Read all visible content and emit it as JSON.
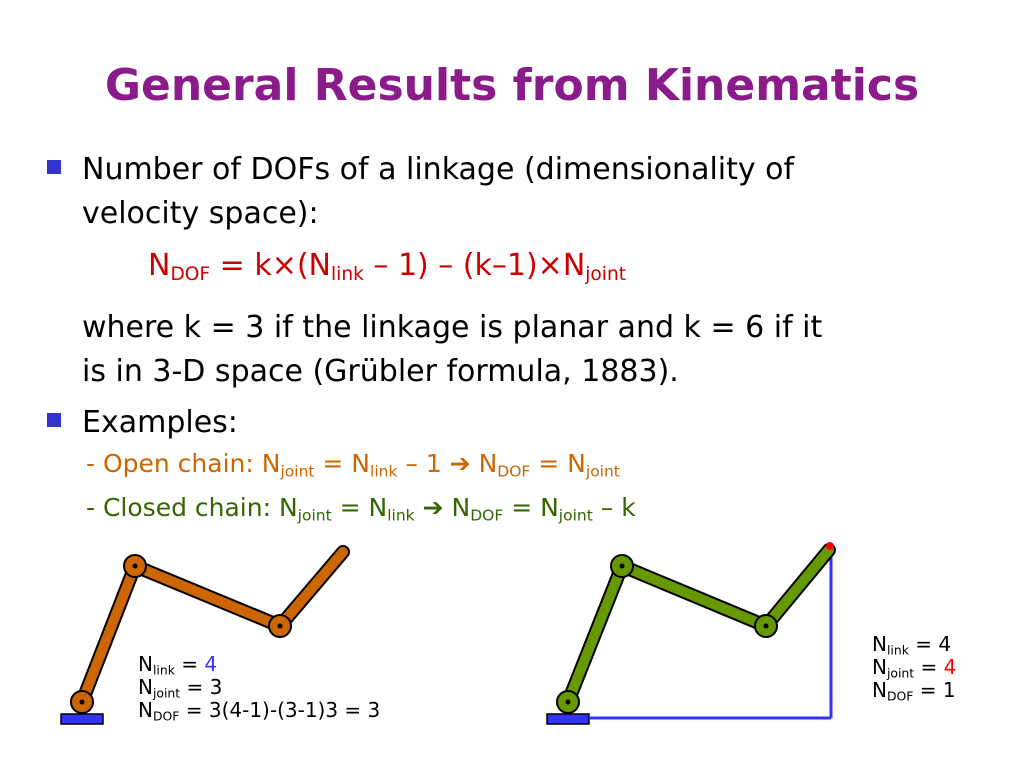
{
  "slide": {
    "title": "General Results from Kinematics",
    "bullet1": {
      "line1": "Number of DOFs of a linkage (dimensionality of",
      "line2": "velocity space):",
      "formula": {
        "n": "N",
        "dof_sub": "DOF",
        "eq_k": " = k×(N",
        "link_sub": "link",
        "minus1": " – 1) – (k–1)×N",
        "joint_sub": "joint"
      },
      "where1": "where k = 3 if the linkage is planar and k = 6 if it",
      "where2": "is in 3-D space (Grübler formula, 1883)."
    },
    "bullet2": {
      "label": "Examples:",
      "open": {
        "prefix": "- Open chain: N",
        "joint_sub": "joint",
        "eq": " = N",
        "link_sub": "link",
        "minus": " – 1 ➔ N",
        "dof_sub": "DOF",
        "eq2": " = N",
        "joint_sub2": "joint"
      },
      "closed": {
        "prefix": "- Closed chain: N",
        "joint_sub": "joint",
        "eq": " = N",
        "link_sub": "link",
        "arrow": " ➔ N",
        "dof_sub": "DOF",
        "eq2": " = N",
        "joint_sub2": "joint",
        "minus_k": " – k"
      }
    }
  },
  "left_example": {
    "nlink": {
      "n": "N",
      "sub": "link",
      "eq": " = ",
      "val": "4"
    },
    "njoint": {
      "n": "N",
      "sub": "joint",
      "eq": " = ",
      "val": "3"
    },
    "ndof": {
      "n": "N",
      "sub": "DOF",
      "eq": " = 3(4-1)-(3-1)3 = 3"
    }
  },
  "right_example": {
    "nlink": {
      "n": "N",
      "sub": "link",
      "eq": " = ",
      "val": "4"
    },
    "njoint": {
      "n": "N",
      "sub": "joint",
      "eq": " = ",
      "val": "4"
    },
    "ndof": {
      "n": "N",
      "sub": "DOF",
      "eq": " = ",
      "val": "1"
    }
  },
  "colors": {
    "title": "#8b1a8b",
    "bullet": "#3333cc",
    "formula": "#cc0000",
    "open_chain": "#cc6600",
    "closed_chain": "#336600",
    "orange_link": "#cc6600",
    "green_link": "#669900",
    "blue": "#3333ff",
    "red_dot": "#ff0000"
  }
}
